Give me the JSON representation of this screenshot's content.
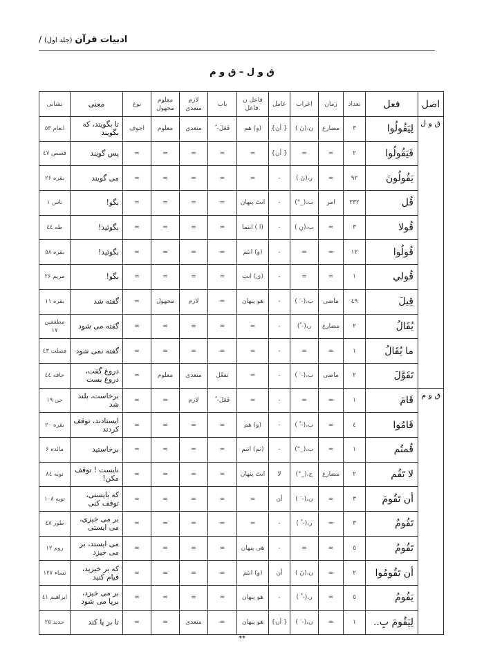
{
  "header": {
    "book_title": "ادبیات قرآن",
    "volume": "(جلد اول)",
    "separator": "/"
  },
  "page_title": "ق و ل – ق و م",
  "columns": {
    "asl": "اصل",
    "fel": "فعل",
    "count": "تعداد",
    "tense": "زمان",
    "erab": "اعراب",
    "amel": "عامل",
    "fael": "فاعل ن .فاعل",
    "bab": "باب",
    "lazem": "لازم متعدی",
    "maloum": "معلوم مجهول",
    "naw": "نوع",
    "mana": "معنی",
    "neshani": "نشانی"
  },
  "groups": [
    {
      "asl": "ق و ل",
      "rows": [
        [
          "لِيَقُولُوا",
          "٣",
          "مضارع",
          "ن،(نَ )",
          "{ أن}",
          "(و) هم",
          "فَعَلَ- ُ",
          "متعدی",
          "معلوم",
          "اجوف",
          "تا بگویند، که بگویند",
          "انعام ٥٣"
        ],
        [
          "فَيَقُولُوا",
          "٢",
          "=",
          "=",
          "{ أن}",
          "=",
          "=",
          "=",
          "=",
          "=",
          "پس گویند",
          "قصص ٤٧"
        ],
        [
          "يَقُولُونَ",
          "٩٢",
          "=",
          "ر،(نَ )",
          "-",
          "=",
          "=",
          "=",
          "=",
          "=",
          "می گویند",
          "بقره ٢۶"
        ],
        [
          "قُل",
          "٣٣٢",
          "امر",
          "ب،(_°)",
          "-",
          "انتَ پنهان",
          "=",
          "=",
          "=",
          "=",
          "بگو!",
          "ناس ١"
        ],
        [
          "قُولا",
          "٣",
          "=",
          "ب،(نِ )",
          "-",
          "(ا ) انتما",
          "=",
          "=",
          "=",
          "=",
          "بگوئید!",
          "طه ٤٤"
        ],
        [
          "قُولُوا",
          "١٢",
          "=",
          "=",
          "-",
          "(و) انتم",
          "=",
          "=",
          "=",
          "=",
          "بگوئید!",
          "بقره ٥٨"
        ],
        [
          "قُولي",
          "١",
          "=",
          "=",
          "-",
          "(ی) انتِ",
          "=",
          "=",
          "=",
          "=",
          "بگو!",
          "مریم ٢۶"
        ],
        [
          "قِيلَ",
          "٤٩",
          "ماضی",
          "ب،(- َ )",
          "-",
          "هو پنهان",
          "=",
          "لازم",
          "مجهول",
          "=",
          "گفته شد",
          "بقره ١١"
        ],
        [
          "يُقَالُ",
          "٢",
          "مضارع",
          "ر،(- ُ)",
          "-",
          "=",
          "=",
          "=",
          "=",
          "=",
          "گفته می شود",
          "مطففین ١٧"
        ],
        [
          "ما يُقَالُ",
          "١",
          "=",
          "=",
          "-",
          "=",
          "=",
          "=",
          "=",
          "=",
          "گفته نمی شود",
          "فصلت ٤٣"
        ],
        [
          "تَقَوَّلَ",
          "٢",
          "ماضی",
          "ب،(- َ )",
          "-",
          "=",
          "تفعّل",
          "متعدی",
          "معلوم",
          "=",
          "دروغ گفت، دروغ بست",
          "حاقه ٤٤"
        ]
      ]
    },
    {
      "asl": "ق و م",
      "rows": [
        [
          "قَامَ",
          "١",
          "=",
          "=",
          "-",
          "=",
          "فَعَلَ- ُ",
          "لازم",
          "=",
          "=",
          "برخاست، بلند شد",
          "جن ١٩"
        ],
        [
          "قَامُوا",
          "٤",
          "=",
          "ب،(- ُ )",
          "-",
          "(و) هم",
          "=",
          "=",
          "=",
          "=",
          "ایستادند، توقف کردند",
          "بقره ٢٠"
        ],
        [
          "قُمتُم",
          "١",
          "=",
          "ب،(_°)",
          "-",
          "(تم) انتم",
          "=",
          "=",
          "=",
          "=",
          "برخاستید",
          "مائده ۶"
        ],
        [
          "لا تَقُم",
          "٢",
          "مضارع",
          "ج،(_°)",
          "لا",
          "انتَ پنهان",
          "=",
          "=",
          "=",
          "=",
          "نایست ! توقف مکن!",
          "توبه ٨٤"
        ],
        [
          "أن تَقُومَ",
          "٣",
          "=",
          "ن،(- َ )",
          "أن",
          "=",
          "=",
          "=",
          "=",
          "=",
          "که بایستی، توقف کنی",
          "توبه ١٠٨"
        ],
        [
          "تَقُومُ",
          "٣",
          "=",
          "ر،(- ُ )",
          "-",
          "=",
          "=",
          "=",
          "=",
          "=",
          "بر می خیزی، می ایستی",
          "طور ٤٨"
        ],
        [
          "تَقُومُ",
          "٥",
          "=",
          "=",
          "-",
          "هی پنهان",
          "=",
          "=",
          "=",
          "=",
          "می ایستد، بر می خیزد",
          "روم ١٢"
        ],
        [
          "أن تَقُومُوا",
          "٢",
          "=",
          "ن،(نَ )",
          "أن",
          "(و) انتم",
          "=",
          "=",
          "=",
          "=",
          "که بر خیزید، قیام کنید",
          "نساء ١٢٧"
        ],
        [
          "يَقُومُ",
          "٥",
          "=",
          "ر،(- ُ )",
          "-",
          "هو پنهان",
          "=",
          "=",
          "=",
          "=",
          "بر می خیزد، برپا می شود",
          "ابراهیم ٤١"
        ],
        [
          "لِيَقُومَ بِ..",
          "١",
          "=",
          "ن،(- َ )",
          "{ أن}",
          "هو پنهان",
          "=",
          "متعدی",
          "=",
          "=",
          "تا بر پا کند",
          "حدید ٢٥"
        ]
      ]
    }
  ],
  "footer": "**"
}
